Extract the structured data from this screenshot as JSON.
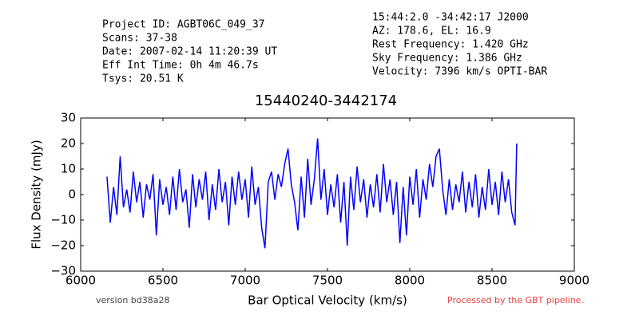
{
  "header": {
    "left": [
      "Project ID: AGBT06C_049_37",
      "Scans: 37-38",
      "Date: 2007-02-14 11:20:39 UT",
      "Eff Int Time: 0h 4m 46.7s",
      "Tsys: 20.51 K"
    ],
    "right": [
      "15:44:2.0 -34:42:17 J2000",
      "AZ: 178.6, EL: 16.9",
      "Rest Frequency:   1.420 GHz",
      "Sky Frequency:    1.386 GHz",
      "Velocity: 7396 km/s OPTI-BAR"
    ]
  },
  "footer": {
    "version": "version bd38a28",
    "credit": "Processed by the GBT pipeline."
  },
  "chart_data": {
    "type": "line",
    "title": "15440240-3442174",
    "x_label": "Bar Optical Velocity (km/s)",
    "y_label": "Flux Density (mJy)",
    "color": "#0000ff",
    "xlim": [
      6000,
      9000
    ],
    "xticks": [
      6000,
      6500,
      7000,
      7500,
      8000,
      8500,
      9000
    ],
    "ylim": [
      -30,
      30
    ],
    "yticks": [
      30,
      20,
      10,
      0,
      {
        "value": -10,
        "label": "−10"
      },
      {
        "value": -20,
        "label": "−20"
      },
      {
        "value": -30,
        "label": "−30"
      }
    ],
    "x": [
      6160,
      6180,
      6200,
      6220,
      6240,
      6260,
      6280,
      6300,
      6320,
      6340,
      6360,
      6380,
      6400,
      6420,
      6440,
      6460,
      6480,
      6500,
      6520,
      6540,
      6560,
      6580,
      6600,
      6620,
      6640,
      6660,
      6680,
      6700,
      6720,
      6740,
      6760,
      6780,
      6800,
      6820,
      6840,
      6860,
      6880,
      6900,
      6920,
      6940,
      6960,
      6980,
      7000,
      7020,
      7040,
      7060,
      7080,
      7100,
      7120,
      7140,
      7160,
      7180,
      7200,
      7220,
      7240,
      7260,
      7280,
      7300,
      7320,
      7340,
      7360,
      7380,
      7400,
      7420,
      7440,
      7460,
      7480,
      7500,
      7520,
      7540,
      7560,
      7580,
      7600,
      7620,
      7640,
      7660,
      7680,
      7700,
      7720,
      7740,
      7760,
      7780,
      7800,
      7820,
      7840,
      7860,
      7880,
      7900,
      7920,
      7940,
      7960,
      7980,
      8000,
      8020,
      8040,
      8060,
      8080,
      8100,
      8120,
      8140,
      8160,
      8180,
      8200,
      8220,
      8240,
      8260,
      8280,
      8300,
      8320,
      8340,
      8360,
      8380,
      8400,
      8420,
      8440,
      8460,
      8480,
      8500,
      8520,
      8540,
      8560,
      8580,
      8600,
      8620,
      8640,
      8650
    ],
    "values": [
      7,
      -11,
      3,
      -8,
      15,
      -5,
      2,
      -7,
      9,
      -3,
      5,
      -9,
      4,
      -2,
      8,
      -16,
      6,
      -4,
      3,
      -8,
      7,
      -6,
      10,
      -3,
      2,
      -13,
      8,
      -5,
      6,
      -2,
      9,
      -10,
      4,
      -6,
      10,
      -3,
      5,
      -12,
      7,
      -4,
      9,
      -2,
      6,
      -9,
      11,
      -4,
      3,
      -13,
      -21,
      5,
      9,
      -2,
      8,
      3,
      12,
      18,
      4,
      -3,
      -14,
      7,
      -9,
      14,
      -4,
      6,
      22,
      -2,
      10,
      -8,
      4,
      -5,
      8,
      -11,
      5,
      -20,
      7,
      -6,
      11,
      -3,
      6,
      -9,
      4,
      -5,
      8,
      -7,
      12,
      -3,
      6,
      -8,
      5,
      -19,
      3,
      -16,
      7,
      -4,
      10,
      -9,
      6,
      -2,
      12,
      3,
      15,
      18,
      2,
      -8,
      6,
      -6,
      4,
      -3,
      9,
      -7,
      5,
      -5,
      8,
      -9,
      3,
      -6,
      10,
      -4,
      5,
      -8,
      9,
      -3,
      6,
      -7,
      -12,
      20
    ]
  }
}
